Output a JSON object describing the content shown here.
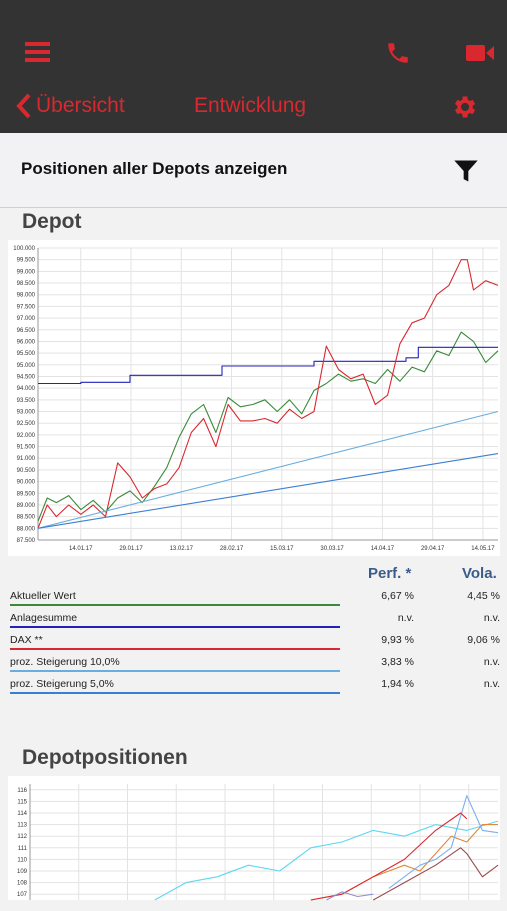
{
  "header": {
    "back_label": "Übersicht",
    "title": "Entwicklung",
    "accent_color": "#d9282f",
    "icons": [
      "menu-icon",
      "phone-icon",
      "video-icon",
      "chevron-left-icon",
      "gear-icon"
    ]
  },
  "filter": {
    "label": "Positionen aller Depots anzeigen",
    "icon": "filter-icon"
  },
  "depot": {
    "title": "Depot",
    "columns": {
      "perf": "Perf. *",
      "vola": "Vola."
    },
    "legend": [
      {
        "label": "Aktueller Wert",
        "perf": "6,67 %",
        "vola": "4,45 %",
        "color": "#3a8a3a"
      },
      {
        "label": "Anlagesumme",
        "perf": "n.v.",
        "vola": "n.v.",
        "color": "#2222bb"
      },
      {
        "label": "DAX **",
        "perf": "9,93 %",
        "vola": "9,06 %",
        "color": "#d9282f"
      },
      {
        "label": "proz. Steigerung 10,0%",
        "perf": "3,83 %",
        "vola": "n.v.",
        "color": "#6aaee0"
      },
      {
        "label": "proz. Steigerung 5,0%",
        "perf": "1,94 %",
        "vola": "n.v.",
        "color": "#3b7fd0"
      }
    ]
  },
  "positions": {
    "title": "Depotpositionen"
  },
  "chart_data": [
    {
      "type": "line",
      "title": "",
      "xlabel": "",
      "ylabel": "",
      "x_ticks": [
        "14.01.17",
        "29.01.17",
        "13.02.17",
        "28.02.17",
        "15.03.17",
        "30.03.17",
        "14.04.17",
        "29.04.17",
        "14.05.17"
      ],
      "y_ticks": [
        "87.500",
        "88.000",
        "88.500",
        "89.000",
        "89.500",
        "90.000",
        "90.500",
        "91.000",
        "91.500",
        "92.000",
        "92.500",
        "93.000",
        "93.500",
        "94.000",
        "94.500",
        "95.000",
        "95.500",
        "96.000",
        "96.500",
        "97.000",
        "97.500",
        "98.000",
        "98.500",
        "99.000",
        "99.500",
        "100.000"
      ],
      "ylim": [
        87500,
        100000
      ],
      "x_range": [
        0,
        150
      ],
      "grid": true,
      "series": [
        {
          "name": "Aktueller Wert",
          "color": "#3a8a3a",
          "x": [
            0,
            3,
            6,
            10,
            14,
            18,
            22,
            26,
            30,
            34,
            38,
            42,
            46,
            50,
            54,
            58,
            62,
            66,
            70,
            74,
            78,
            82,
            86,
            90,
            94,
            98,
            102,
            106,
            110,
            114,
            118,
            122,
            126,
            130,
            134,
            138,
            142,
            146,
            150
          ],
          "y": [
            88300,
            89300,
            89100,
            89400,
            88800,
            89200,
            88700,
            89300,
            89600,
            89100,
            89800,
            90600,
            91900,
            92900,
            93300,
            92100,
            93600,
            93200,
            93300,
            93500,
            93000,
            93500,
            92900,
            93900,
            94200,
            94600,
            94300,
            94400,
            94200,
            94800,
            94300,
            94900,
            94700,
            95600,
            95400,
            96400,
            96000,
            95100,
            95600
          ]
        },
        {
          "name": "Anlagesumme",
          "color": "#2222bb",
          "x": [
            0,
            14,
            14,
            30,
            30,
            60,
            60,
            90,
            90,
            120,
            120,
            124,
            124,
            150
          ],
          "y": [
            94200,
            94200,
            94250,
            94250,
            94550,
            94550,
            94950,
            94950,
            95150,
            95150,
            95300,
            95300,
            95750,
            95750
          ]
        },
        {
          "name": "DAX **",
          "color": "#d9282f",
          "x": [
            0,
            3,
            6,
            10,
            14,
            18,
            22,
            26,
            30,
            34,
            38,
            42,
            46,
            50,
            54,
            58,
            62,
            66,
            70,
            74,
            78,
            82,
            86,
            90,
            94,
            98,
            102,
            106,
            110,
            114,
            118,
            122,
            126,
            130,
            134,
            138,
            140,
            142,
            146,
            150
          ],
          "y": [
            88000,
            89000,
            88500,
            89000,
            88600,
            89000,
            88500,
            90800,
            90200,
            89300,
            89700,
            89900,
            90600,
            92100,
            92700,
            91500,
            93300,
            92600,
            92600,
            92700,
            92500,
            93100,
            92700,
            93000,
            95800,
            94800,
            94400,
            94600,
            93300,
            93700,
            95900,
            96800,
            97000,
            98000,
            98400,
            99500,
            99500,
            98200,
            98600,
            98400
          ]
        },
        {
          "name": "proz. Steigerung 10,0%",
          "color": "#6aaee0",
          "x": [
            0,
            150
          ],
          "y": [
            88000,
            93000
          ]
        },
        {
          "name": "proz. Steigerung 5,0%",
          "color": "#3b7fd0",
          "x": [
            0,
            150
          ],
          "y": [
            88000,
            91200
          ]
        }
      ]
    },
    {
      "type": "line",
      "title": "",
      "xlabel": "",
      "ylabel": "",
      "y_ticks": [
        "107",
        "108",
        "109",
        "110",
        "111",
        "112",
        "113",
        "114",
        "115",
        "116"
      ],
      "ylim": [
        106.5,
        116.5
      ],
      "x_range": [
        0,
        150
      ],
      "grid": true,
      "series": [
        {
          "name": "",
          "color": "#5bd8f0",
          "x": [
            40,
            50,
            60,
            70,
            80,
            90,
            100,
            110,
            120,
            130,
            140,
            150
          ],
          "y": [
            106.5,
            108,
            108.5,
            109.5,
            109,
            111,
            111.5,
            112.5,
            112,
            113,
            112.5,
            113.3
          ]
        },
        {
          "name": "",
          "color": "#e08a3a",
          "x": [
            90,
            100,
            110,
            120,
            125,
            130,
            135,
            140,
            145,
            150
          ],
          "y": [
            106.5,
            107,
            108.5,
            109.5,
            109,
            110.5,
            112,
            111.5,
            113,
            113
          ]
        },
        {
          "name": "",
          "color": "#7bb0f0",
          "x": [
            115,
            120,
            125,
            130,
            135,
            140,
            145,
            150
          ],
          "y": [
            107.5,
            108.5,
            109.5,
            110,
            111,
            115.5,
            112.5,
            112.3
          ]
        },
        {
          "name": "",
          "color": "#9a4a4a",
          "x": [
            110,
            120,
            130,
            138,
            140,
            145,
            150
          ],
          "y": [
            106.5,
            108,
            109.5,
            111,
            110.5,
            108.5,
            109.5
          ]
        },
        {
          "name": "",
          "color": "#d9282f",
          "x": [
            90,
            100,
            110,
            120,
            130,
            138,
            140
          ],
          "y": [
            106.5,
            107,
            108.5,
            110,
            112.5,
            114,
            113.5
          ]
        },
        {
          "name": "",
          "color": "#8f8fd0",
          "x": [
            95,
            100,
            105,
            110
          ],
          "y": [
            106.5,
            107.2,
            106.8,
            107
          ]
        }
      ]
    }
  ]
}
